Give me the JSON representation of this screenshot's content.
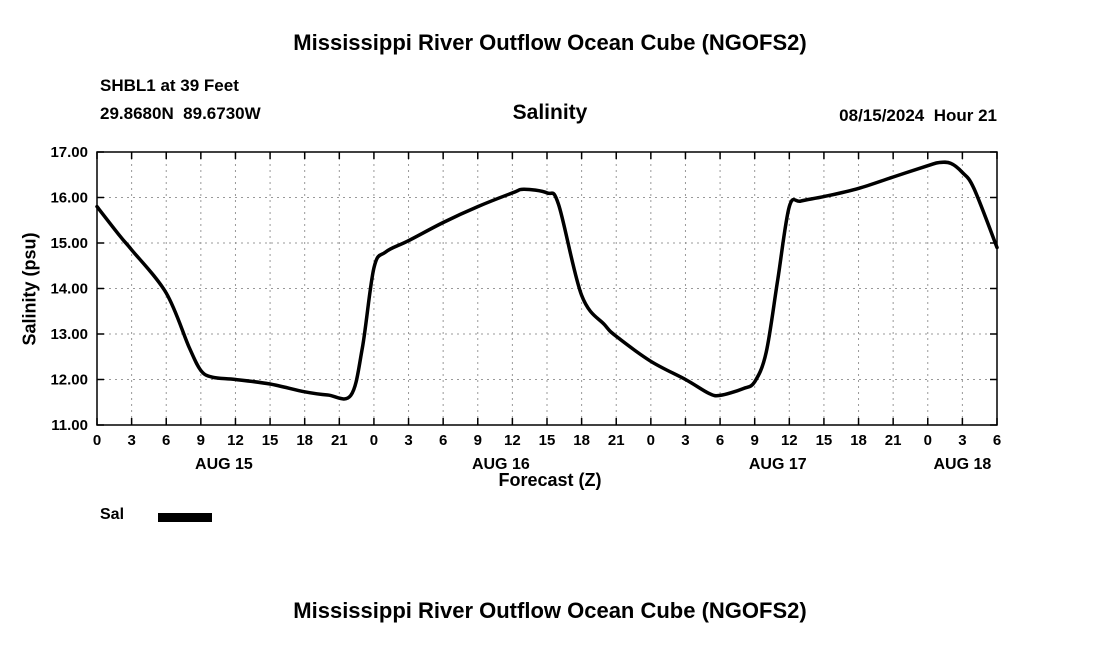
{
  "header": {
    "top_title": "Mississippi River Outflow Ocean Cube (NGOFS2)",
    "station_line1": "SHBL1 at 39 Feet",
    "station_line2": "29.8680N  89.6730W",
    "plot_label": "Salinity",
    "datetime_label": "08/15/2024  Hour 21"
  },
  "footer": {
    "bottom_title": "Mississippi River Outflow Ocean Cube (NGOFS2)"
  },
  "legend": {
    "label": "Sal",
    "color": "#000000"
  },
  "chart_data": {
    "type": "line",
    "title": "Salinity",
    "xlabel": "Forecast (Z)",
    "ylabel": "Salinity (psu)",
    "ylim": [
      11.0,
      17.0
    ],
    "x_range": [
      0,
      78
    ],
    "x_tick_step": 3,
    "x_tick_labels": [
      "0",
      "3",
      "6",
      "9",
      "12",
      "15",
      "18",
      "21",
      "0",
      "3",
      "6",
      "9",
      "12",
      "15",
      "18",
      "21",
      "0",
      "3",
      "6",
      "9",
      "12",
      "15",
      "18",
      "21",
      "0",
      "3",
      "6"
    ],
    "y_ticks": [
      11,
      12,
      13,
      14,
      15,
      16,
      17
    ],
    "y_tick_labels": [
      "11.00",
      "12.00",
      "13.00",
      "14.00",
      "15.00",
      "16.00",
      "17.00"
    ],
    "day_labels": [
      {
        "label": "AUG 15",
        "hour": 11
      },
      {
        "label": "AUG 16",
        "hour": 35
      },
      {
        "label": "AUG 17",
        "hour": 59
      },
      {
        "label": "AUG 18",
        "hour": 75
      }
    ],
    "grid": true,
    "grid_color": "#999999",
    "legend_position": "bottom-left",
    "series": [
      {
        "name": "Sal",
        "color": "#000000",
        "points": [
          [
            0,
            15.8
          ],
          [
            2,
            15.15
          ],
          [
            3,
            14.85
          ],
          [
            6,
            13.9
          ],
          [
            8,
            12.7
          ],
          [
            9,
            12.2
          ],
          [
            10,
            12.05
          ],
          [
            12,
            12.0
          ],
          [
            15,
            11.9
          ],
          [
            18,
            11.73
          ],
          [
            20,
            11.66
          ],
          [
            22,
            11.65
          ],
          [
            23,
            12.7
          ],
          [
            24,
            14.45
          ],
          [
            25,
            14.8
          ],
          [
            27,
            15.05
          ],
          [
            30,
            15.45
          ],
          [
            33,
            15.8
          ],
          [
            36,
            16.1
          ],
          [
            37,
            16.18
          ],
          [
            39,
            16.1
          ],
          [
            40,
            15.85
          ],
          [
            42,
            13.85
          ],
          [
            44,
            13.2
          ],
          [
            45,
            12.95
          ],
          [
            48,
            12.4
          ],
          [
            51,
            12.0
          ],
          [
            53,
            11.7
          ],
          [
            54,
            11.65
          ],
          [
            56,
            11.8
          ],
          [
            57,
            11.95
          ],
          [
            58,
            12.6
          ],
          [
            59,
            14.2
          ],
          [
            60,
            15.8
          ],
          [
            61,
            15.92
          ],
          [
            63,
            16.02
          ],
          [
            66,
            16.2
          ],
          [
            69,
            16.45
          ],
          [
            72,
            16.7
          ],
          [
            73,
            16.77
          ],
          [
            74,
            16.75
          ],
          [
            75,
            16.55
          ],
          [
            76,
            16.2
          ],
          [
            78,
            14.9
          ]
        ]
      }
    ]
  }
}
